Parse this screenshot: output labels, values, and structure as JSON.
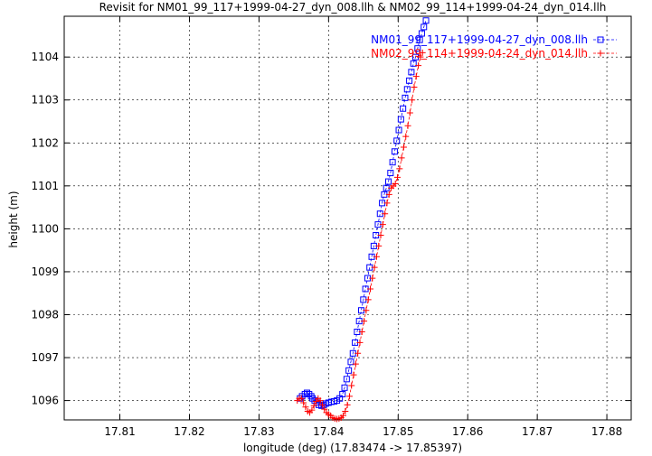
{
  "chart_data": {
    "type": "line",
    "title": "Revisit for NM01_99_117+1999-04-27_dyn_008.llh & NM02_99_114+1999-04-24_dyn_014.llh",
    "xlabel": "longitude (deg) (17.83474 -> 17.85397)",
    "ylabel": "height (m)",
    "xlim": [
      17.802,
      17.8835
    ],
    "ylim": [
      1095.55,
      1104.95
    ],
    "x_ticks": [
      17.81,
      17.82,
      17.83,
      17.84,
      17.85,
      17.86,
      17.87,
      17.88
    ],
    "x_tick_labels": [
      "17.81",
      "17.82",
      "17.83",
      "17.84",
      "17.85",
      "17.86",
      "17.87",
      "17.88"
    ],
    "y_ticks": [
      1096,
      1097,
      1098,
      1099,
      1100,
      1101,
      1102,
      1103,
      1104
    ],
    "y_tick_labels": [
      "1096",
      "1097",
      "1098",
      "1099",
      "1100",
      "1101",
      "1102",
      "1103",
      "1104"
    ],
    "grid": true,
    "legend_position": "top-right",
    "series": [
      {
        "name": "NM01_99_117+1999-04-27_dyn_008.llh",
        "color": "#0000ff",
        "marker": "square",
        "x": [
          17.8359,
          17.8362,
          17.8366,
          17.8369,
          17.8372,
          17.8375,
          17.8377,
          17.838,
          17.8383,
          17.8386,
          17.839,
          17.8393,
          17.8396,
          17.84,
          17.8404,
          17.8408,
          17.8412,
          17.8416,
          17.842,
          17.8423,
          17.8426,
          17.8429,
          17.8432,
          17.8435,
          17.8438,
          17.8441,
          17.8444,
          17.8447,
          17.845,
          17.8453,
          17.8456,
          17.8459,
          17.8462,
          17.8465,
          17.8468,
          17.8471,
          17.8474,
          17.8477,
          17.848,
          17.8483,
          17.8486,
          17.8489,
          17.8492,
          17.8495,
          17.8498,
          17.8501,
          17.8504,
          17.8507,
          17.851,
          17.8513,
          17.8516,
          17.8519,
          17.8522,
          17.8525,
          17.8528,
          17.8531,
          17.8534,
          17.8537,
          17.854
        ],
        "y": [
          1096.05,
          1096.1,
          1096.15,
          1096.18,
          1096.15,
          1096.1,
          1096.05,
          1096.0,
          1095.95,
          1095.9,
          1095.88,
          1095.9,
          1095.93,
          1095.95,
          1095.97,
          1095.98,
          1096.0,
          1096.05,
          1096.15,
          1096.3,
          1096.5,
          1096.7,
          1096.9,
          1097.1,
          1097.35,
          1097.6,
          1097.85,
          1098.1,
          1098.35,
          1098.6,
          1098.85,
          1099.1,
          1099.35,
          1099.6,
          1099.85,
          1100.1,
          1100.35,
          1100.6,
          1100.8,
          1100.95,
          1101.1,
          1101.3,
          1101.55,
          1101.8,
          1102.05,
          1102.3,
          1102.55,
          1102.8,
          1103.05,
          1103.25,
          1103.45,
          1103.65,
          1103.85,
          1104.0,
          1104.2,
          1104.4,
          1104.55,
          1104.7,
          1104.85
        ]
      },
      {
        "name": "NM02_99_114+1999-04-24_dyn_014.llh",
        "color": "#ff0000",
        "marker": "plus",
        "x": [
          17.8355,
          17.8358,
          17.8361,
          17.8364,
          17.8367,
          17.837,
          17.8373,
          17.8376,
          17.8379,
          17.8382,
          17.8385,
          17.8388,
          17.8391,
          17.8394,
          17.8397,
          17.84,
          17.8403,
          17.8406,
          17.8409,
          17.8412,
          17.8415,
          17.8418,
          17.8421,
          17.8424,
          17.8427,
          17.843,
          17.8433,
          17.8436,
          17.8439,
          17.8442,
          17.8445,
          17.8448,
          17.8451,
          17.8454,
          17.8457,
          17.846,
          17.8463,
          17.8466,
          17.8469,
          17.8472,
          17.8475,
          17.8478,
          17.8481,
          17.8484,
          17.8487,
          17.849,
          17.8493,
          17.8496,
          17.8499,
          17.8502,
          17.8505,
          17.8508,
          17.8511,
          17.8514,
          17.8517,
          17.852,
          17.8523,
          17.8526,
          17.8529,
          17.8532,
          17.8535
        ],
        "y": [
          1096.0,
          1096.05,
          1096.05,
          1095.95,
          1095.85,
          1095.75,
          1095.72,
          1095.78,
          1095.88,
          1095.98,
          1096.05,
          1096.0,
          1095.9,
          1095.8,
          1095.72,
          1095.68,
          1095.65,
          1095.6,
          1095.58,
          1095.57,
          1095.58,
          1095.6,
          1095.65,
          1095.75,
          1095.9,
          1096.1,
          1096.35,
          1096.6,
          1096.85,
          1097.1,
          1097.35,
          1097.6,
          1097.85,
          1098.1,
          1098.35,
          1098.6,
          1098.85,
          1099.1,
          1099.35,
          1099.6,
          1099.85,
          1100.1,
          1100.35,
          1100.6,
          1100.8,
          1100.95,
          1101.0,
          1101.05,
          1101.2,
          1101.4,
          1101.65,
          1101.9,
          1102.15,
          1102.4,
          1102.7,
          1103.0,
          1103.3,
          1103.55,
          1103.8,
          1104.0,
          1104.1
        ]
      }
    ]
  }
}
